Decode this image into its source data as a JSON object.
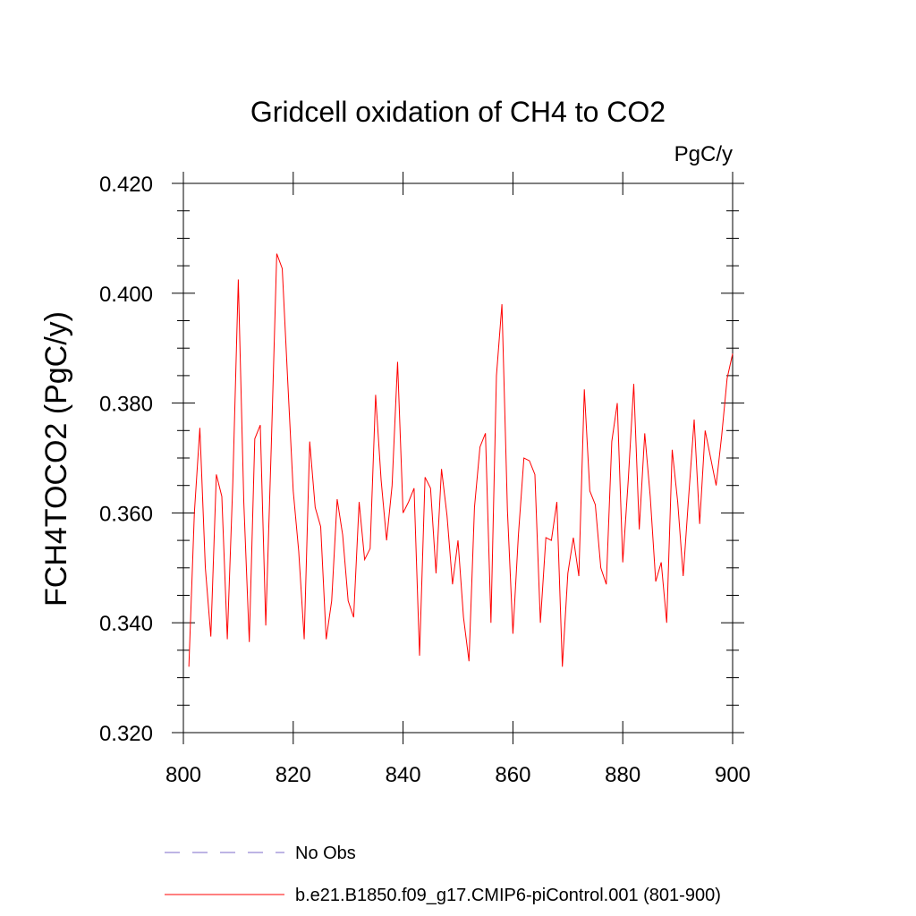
{
  "chart_data": {
    "type": "line",
    "title": "Gridcell oxidation of CH4 to CO2",
    "units": "PgC/y",
    "xlabel": "",
    "ylabel": "FCH4TOCO2  (PgC/y)",
    "xlim": [
      800,
      900
    ],
    "ylim": [
      0.32,
      0.42
    ],
    "xticks": [
      800,
      820,
      840,
      860,
      880,
      900
    ],
    "xtick_labels": [
      "800",
      "820",
      "840",
      "860",
      "880",
      "900"
    ],
    "yticks": [
      0.32,
      0.34,
      0.36,
      0.38,
      0.4,
      0.42
    ],
    "ytick_labels": [
      "0.320",
      "0.340",
      "0.360",
      "0.380",
      "0.400",
      "0.420"
    ],
    "grid": false,
    "legend": [
      {
        "label": "No Obs",
        "color": "#7b68c8",
        "style": "dashed"
      },
      {
        "label": "b.e21.B1850.f09_g17.CMIP6-piControl.001 (801-900)",
        "color": "#ff0000",
        "style": "solid"
      }
    ],
    "series": [
      {
        "name": "b.e21.B1850.f09_g17.CMIP6-piControl.001 (801-900)",
        "color": "#ff0000",
        "x": [
          801,
          802,
          803,
          804,
          805,
          806,
          807,
          808,
          809,
          810,
          811,
          812,
          813,
          814,
          815,
          816,
          817,
          818,
          819,
          820,
          821,
          822,
          823,
          824,
          825,
          826,
          827,
          828,
          829,
          830,
          831,
          832,
          833,
          834,
          835,
          836,
          837,
          838,
          839,
          840,
          841,
          842,
          843,
          844,
          845,
          846,
          847,
          848,
          849,
          850,
          851,
          852,
          853,
          854,
          855,
          856,
          857,
          858,
          859,
          860,
          861,
          862,
          863,
          864,
          865,
          866,
          867,
          868,
          869,
          870,
          871,
          872,
          873,
          874,
          875,
          876,
          877,
          878,
          879,
          880,
          881,
          882,
          883,
          884,
          885,
          886,
          887,
          888,
          889,
          890,
          891,
          892,
          893,
          894,
          895,
          896,
          897,
          898,
          899,
          900
        ],
        "values": [
          0.332,
          0.36,
          0.3755,
          0.35,
          0.3375,
          0.367,
          0.363,
          0.337,
          0.3655,
          0.4025,
          0.362,
          0.3365,
          0.3735,
          0.376,
          0.3395,
          0.372,
          0.4072,
          0.4045,
          0.384,
          0.364,
          0.353,
          0.337,
          0.373,
          0.361,
          0.3575,
          0.337,
          0.344,
          0.3625,
          0.356,
          0.344,
          0.341,
          0.362,
          0.3515,
          0.3535,
          0.3815,
          0.366,
          0.355,
          0.365,
          0.3875,
          0.36,
          0.362,
          0.3645,
          0.334,
          0.3665,
          0.3645,
          0.349,
          0.368,
          0.3595,
          0.347,
          0.355,
          0.341,
          0.333,
          0.361,
          0.372,
          0.3745,
          0.34,
          0.385,
          0.398,
          0.3605,
          0.338,
          0.356,
          0.37,
          0.3695,
          0.367,
          0.34,
          0.3555,
          0.355,
          0.362,
          0.332,
          0.349,
          0.3555,
          0.3485,
          0.3825,
          0.364,
          0.3615,
          0.35,
          0.347,
          0.373,
          0.38,
          0.351,
          0.366,
          0.3835,
          0.357,
          0.3745,
          0.363,
          0.3475,
          0.351,
          0.34,
          0.3715,
          0.362,
          0.3485,
          0.363,
          0.377,
          0.358,
          0.375,
          0.37,
          0.365,
          0.374,
          0.3845,
          0.389
        ]
      }
    ]
  }
}
